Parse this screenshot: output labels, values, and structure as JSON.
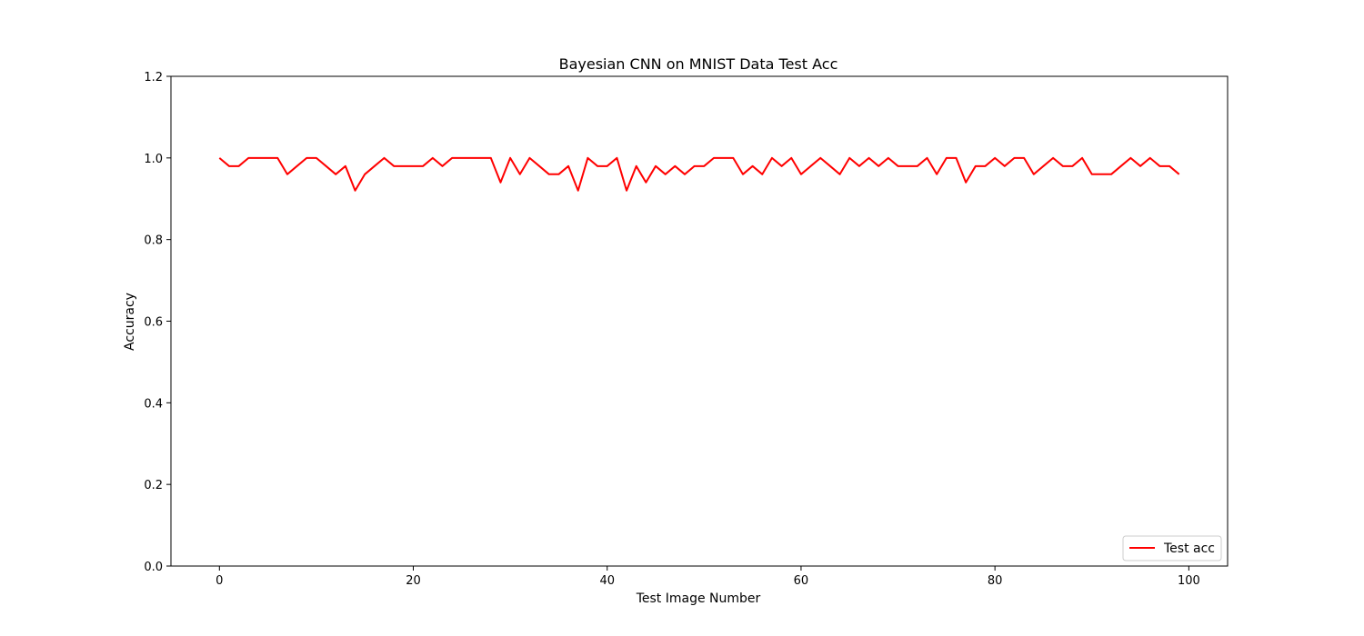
{
  "chart_data": {
    "type": "line",
    "title": "Bayesian CNN on MNIST Data Test Acc",
    "xlabel": "Test Image Number",
    "ylabel": "Accuracy",
    "xlim": [
      -5,
      104
    ],
    "ylim": [
      0.0,
      1.2
    ],
    "xticks": [
      0,
      20,
      40,
      60,
      80,
      100
    ],
    "xtick_labels": [
      "0",
      "20",
      "40",
      "60",
      "80",
      "100"
    ],
    "yticks": [
      0.0,
      0.2,
      0.4,
      0.6,
      0.8,
      1.0,
      1.2
    ],
    "ytick_labels": [
      "0.0",
      "0.2",
      "0.4",
      "0.6",
      "0.8",
      "1.0",
      "1.2"
    ],
    "grid": false,
    "legend": {
      "position": "lower-right"
    },
    "series": [
      {
        "name": "Test acc",
        "color": "#ff0000",
        "x": [
          0,
          1,
          2,
          3,
          4,
          5,
          6,
          7,
          8,
          9,
          10,
          11,
          12,
          13,
          14,
          15,
          16,
          17,
          18,
          19,
          20,
          21,
          22,
          23,
          24,
          25,
          26,
          27,
          28,
          29,
          30,
          31,
          32,
          33,
          34,
          35,
          36,
          37,
          38,
          39,
          40,
          41,
          42,
          43,
          44,
          45,
          46,
          47,
          48,
          49,
          50,
          51,
          52,
          53,
          54,
          55,
          56,
          57,
          58,
          59,
          60,
          61,
          62,
          63,
          64,
          65,
          66,
          67,
          68,
          69,
          70,
          71,
          72,
          73,
          74,
          75,
          76,
          77,
          78,
          79,
          80,
          81,
          82,
          83,
          84,
          85,
          86,
          87,
          88,
          89,
          90,
          91,
          92,
          93,
          94,
          95,
          96,
          97,
          98,
          99
        ],
        "values": [
          1.0,
          0.98,
          0.98,
          1.0,
          1.0,
          1.0,
          1.0,
          0.96,
          0.98,
          1.0,
          1.0,
          0.98,
          0.96,
          0.98,
          0.92,
          0.96,
          0.98,
          1.0,
          0.98,
          0.98,
          0.98,
          0.98,
          1.0,
          0.98,
          1.0,
          1.0,
          1.0,
          1.0,
          1.0,
          0.94,
          1.0,
          0.96,
          1.0,
          0.98,
          0.96,
          0.96,
          0.98,
          0.92,
          1.0,
          0.98,
          0.98,
          1.0,
          0.92,
          0.98,
          0.94,
          0.98,
          0.96,
          0.98,
          0.96,
          0.98,
          0.98,
          1.0,
          1.0,
          1.0,
          0.96,
          0.98,
          0.96,
          1.0,
          0.98,
          1.0,
          0.96,
          0.98,
          1.0,
          0.98,
          0.96,
          1.0,
          0.98,
          1.0,
          0.98,
          1.0,
          0.98,
          0.98,
          0.98,
          1.0,
          0.96,
          1.0,
          1.0,
          0.94,
          0.98,
          0.98,
          1.0,
          0.98,
          1.0,
          1.0,
          0.96,
          0.98,
          1.0,
          0.98,
          0.98,
          1.0,
          0.96,
          0.96,
          0.96,
          0.98,
          1.0,
          0.98,
          1.0,
          0.98,
          0.98,
          0.96
        ]
      }
    ]
  }
}
